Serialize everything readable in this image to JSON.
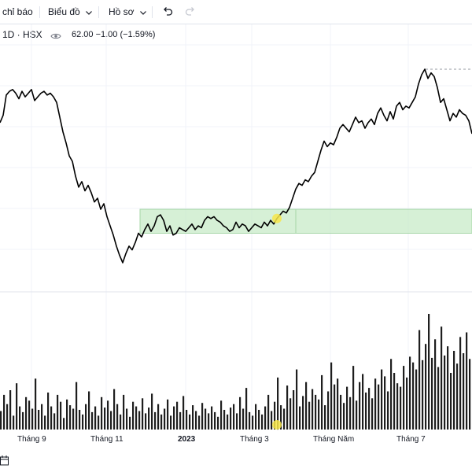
{
  "toolbar": {
    "indicators_label": "chỉ báo",
    "chart_type_label": "Biểu đồ",
    "profile_label": "Hồ sơ",
    "undo_icon": "undo-icon",
    "redo_icon": "redo-icon"
  },
  "legend": {
    "symbol": "1D · HSX",
    "visibility_icon": "eye-icon",
    "price_text": "62.00  −1.00 (−1.59%)"
  },
  "colors": {
    "price_line": "#000000",
    "volume_bars": "#1e1e1e",
    "range_fill": "#c8ebc8",
    "range_border": "#a5d6a7",
    "highlight_dot": "#f7e64a"
  },
  "chart_data": {
    "type": "line",
    "xlabel": "",
    "ylabel": "",
    "x_ticks": [
      {
        "label": "Tháng 9",
        "bold": false
      },
      {
        "label": "Tháng 11",
        "bold": false
      },
      {
        "label": "2023",
        "bold": true
      },
      {
        "label": "Tháng 3",
        "bold": false
      },
      {
        "label": "Tháng Năm",
        "bold": false
      },
      {
        "label": "Tháng 7",
        "bold": false
      }
    ],
    "grid": true,
    "value_range": [
      0,
      100
    ],
    "price_series": [
      [
        0,
        79
      ],
      [
        4,
        83
      ],
      [
        8,
        94
      ],
      [
        12,
        96
      ],
      [
        16,
        97
      ],
      [
        20,
        95
      ],
      [
        24,
        92
      ],
      [
        28,
        96
      ],
      [
        32,
        93
      ],
      [
        36,
        95
      ],
      [
        40,
        97
      ],
      [
        44,
        91
      ],
      [
        48,
        93
      ],
      [
        52,
        95
      ],
      [
        56,
        96
      ],
      [
        60,
        94
      ],
      [
        64,
        95
      ],
      [
        68,
        93
      ],
      [
        72,
        90
      ],
      [
        76,
        82
      ],
      [
        80,
        74
      ],
      [
        84,
        68
      ],
      [
        88,
        61
      ],
      [
        92,
        58
      ],
      [
        96,
        50
      ],
      [
        100,
        44
      ],
      [
        104,
        47
      ],
      [
        108,
        42
      ],
      [
        112,
        45
      ],
      [
        116,
        41
      ],
      [
        120,
        36
      ],
      [
        124,
        38
      ],
      [
        128,
        32
      ],
      [
        132,
        35
      ],
      [
        136,
        28
      ],
      [
        140,
        23
      ],
      [
        144,
        18
      ],
      [
        148,
        12
      ],
      [
        152,
        7
      ],
      [
        156,
        3
      ],
      [
        160,
        8
      ],
      [
        164,
        12
      ],
      [
        168,
        10
      ],
      [
        172,
        14
      ],
      [
        176,
        19
      ],
      [
        180,
        17
      ],
      [
        184,
        21
      ],
      [
        188,
        24
      ],
      [
        192,
        20
      ],
      [
        196,
        23
      ],
      [
        200,
        28
      ],
      [
        204,
        29
      ],
      [
        208,
        26
      ],
      [
        212,
        20
      ],
      [
        216,
        23
      ],
      [
        220,
        18
      ],
      [
        224,
        19
      ],
      [
        228,
        22
      ],
      [
        232,
        21
      ],
      [
        236,
        20
      ],
      [
        240,
        22
      ],
      [
        244,
        24
      ],
      [
        248,
        21
      ],
      [
        252,
        23
      ],
      [
        256,
        22
      ],
      [
        260,
        26
      ],
      [
        264,
        28
      ],
      [
        268,
        27
      ],
      [
        272,
        28
      ],
      [
        276,
        26
      ],
      [
        280,
        25
      ],
      [
        284,
        23
      ],
      [
        288,
        22
      ],
      [
        292,
        20
      ],
      [
        296,
        21
      ],
      [
        300,
        25
      ],
      [
        304,
        22
      ],
      [
        308,
        24
      ],
      [
        312,
        23
      ],
      [
        316,
        20
      ],
      [
        320,
        22
      ],
      [
        324,
        24
      ],
      [
        328,
        23
      ],
      [
        332,
        22
      ],
      [
        336,
        25
      ],
      [
        340,
        23
      ],
      [
        344,
        26
      ],
      [
        348,
        24
      ],
      [
        352,
        27
      ],
      [
        356,
        29
      ],
      [
        360,
        31
      ],
      [
        364,
        30
      ],
      [
        368,
        33
      ],
      [
        372,
        38
      ],
      [
        376,
        43
      ],
      [
        380,
        46
      ],
      [
        384,
        45
      ],
      [
        388,
        48
      ],
      [
        392,
        47
      ],
      [
        396,
        50
      ],
      [
        400,
        52
      ],
      [
        404,
        58
      ],
      [
        408,
        64
      ],
      [
        412,
        69
      ],
      [
        416,
        66
      ],
      [
        420,
        68
      ],
      [
        424,
        67
      ],
      [
        428,
        71
      ],
      [
        432,
        76
      ],
      [
        436,
        78
      ],
      [
        440,
        76
      ],
      [
        444,
        74
      ],
      [
        448,
        78
      ],
      [
        452,
        82
      ],
      [
        456,
        79
      ],
      [
        460,
        80
      ],
      [
        464,
        76
      ],
      [
        468,
        79
      ],
      [
        472,
        81
      ],
      [
        476,
        78
      ],
      [
        480,
        84
      ],
      [
        484,
        87
      ],
      [
        488,
        83
      ],
      [
        492,
        80
      ],
      [
        496,
        85
      ],
      [
        500,
        81
      ],
      [
        504,
        88
      ],
      [
        508,
        90
      ],
      [
        512,
        86
      ],
      [
        516,
        88
      ],
      [
        520,
        87
      ],
      [
        524,
        90
      ],
      [
        528,
        93
      ],
      [
        532,
        100
      ],
      [
        536,
        105
      ],
      [
        540,
        108
      ],
      [
        544,
        103
      ],
      [
        548,
        106
      ],
      [
        552,
        104
      ],
      [
        556,
        98
      ],
      [
        560,
        90
      ],
      [
        564,
        92
      ],
      [
        568,
        86
      ],
      [
        572,
        80
      ],
      [
        576,
        84
      ],
      [
        580,
        82
      ],
      [
        584,
        86
      ],
      [
        588,
        84
      ],
      [
        592,
        83
      ],
      [
        596,
        80
      ],
      [
        600,
        73
      ]
    ],
    "range_box": {
      "x_start": 178,
      "x_end": 600,
      "y_low": 19,
      "y_high": 32
    },
    "range_divider_x": 376,
    "dashed_high": {
      "x_start": 541,
      "x_end": 600,
      "y": 108
    },
    "highlight_point": [
      352,
      27
    ],
    "volume_bars": [
      16,
      30,
      22,
      34,
      12,
      40,
      20,
      15,
      28,
      25,
      18,
      44,
      17,
      22,
      12,
      32,
      20,
      14,
      30,
      24,
      10,
      26,
      21,
      18,
      41,
      17,
      13,
      22,
      33,
      15,
      20,
      12,
      28,
      19,
      25,
      16,
      35,
      22,
      13,
      30,
      18,
      11,
      24,
      20,
      16,
      27,
      14,
      19,
      31,
      15,
      22,
      13,
      18,
      26,
      12,
      20,
      24,
      15,
      29,
      17,
      13,
      21,
      16,
      12,
      23,
      18,
      14,
      20,
      15,
      11,
      25,
      17,
      13,
      19,
      22,
      14,
      28,
      18,
      36,
      15,
      12,
      22,
      17,
      13,
      20,
      30,
      16,
      24,
      45,
      21,
      18,
      38,
      27,
      34,
      52,
      20,
      29,
      41,
      24,
      35,
      30,
      26,
      47,
      21,
      33,
      58,
      39,
      44,
      30,
      23,
      37,
      28,
      55,
      25,
      41,
      48,
      32,
      36,
      27,
      44,
      39,
      52,
      46,
      33,
      61,
      49,
      40,
      37,
      55,
      45,
      63,
      58,
      52,
      86,
      60,
      74,
      100,
      62,
      78,
      54,
      89,
      64,
      72,
      49,
      68,
      57,
      80,
      66,
      84,
      61
    ]
  }
}
